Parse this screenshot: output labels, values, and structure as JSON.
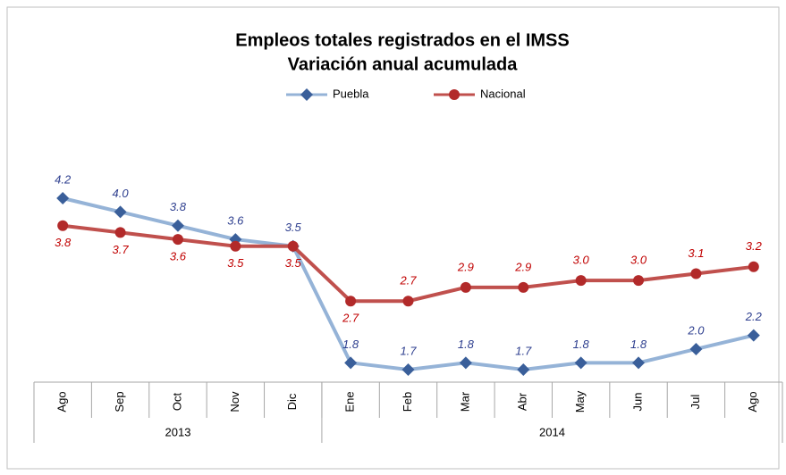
{
  "chart_data": {
    "type": "line",
    "title": [
      "Empleos totales registrados en el IMSS",
      "Variación anual acumulada"
    ],
    "categories": [
      "Ago",
      "Sep",
      "Oct",
      "Nov",
      "Dic",
      "Ene",
      "Feb",
      "Mar",
      "Abr",
      "May",
      "Jun",
      "Jul",
      "Ago"
    ],
    "groups": [
      {
        "label": "2013",
        "count": 5
      },
      {
        "label": "2014",
        "count": 8
      }
    ],
    "series": [
      {
        "name": "Puebla",
        "color": "#95b3d7",
        "marker_color": "#3a5f9a",
        "marker": "diamond",
        "values": [
          4.2,
          4.0,
          3.8,
          3.6,
          3.5,
          1.8,
          1.7,
          1.8,
          1.7,
          1.8,
          1.8,
          2.0,
          2.2
        ],
        "value_labels": [
          "4.2",
          "4.0",
          "3.8",
          "3.6",
          "3.5",
          "1.8",
          "1.7",
          "1.8",
          "1.7",
          "1.8",
          "1.8",
          "2.0",
          "2.2"
        ],
        "label_color": "#2e3f8f"
      },
      {
        "name": "Nacional",
        "color": "#c0504d",
        "marker_color": "#b22a2a",
        "marker": "circle",
        "values": [
          3.8,
          3.7,
          3.6,
          3.5,
          3.5,
          2.7,
          2.7,
          2.9,
          2.9,
          3.0,
          3.0,
          3.1,
          3.2
        ],
        "value_labels": [
          "3.8",
          "3.7",
          "3.6",
          "3.5",
          "3.5",
          "2.7",
          "2.7",
          "2.9",
          "2.9",
          "3.0",
          "3.0",
          "3.1",
          "3.2"
        ],
        "label_color": "#c00000"
      }
    ],
    "legend": "top"
  }
}
